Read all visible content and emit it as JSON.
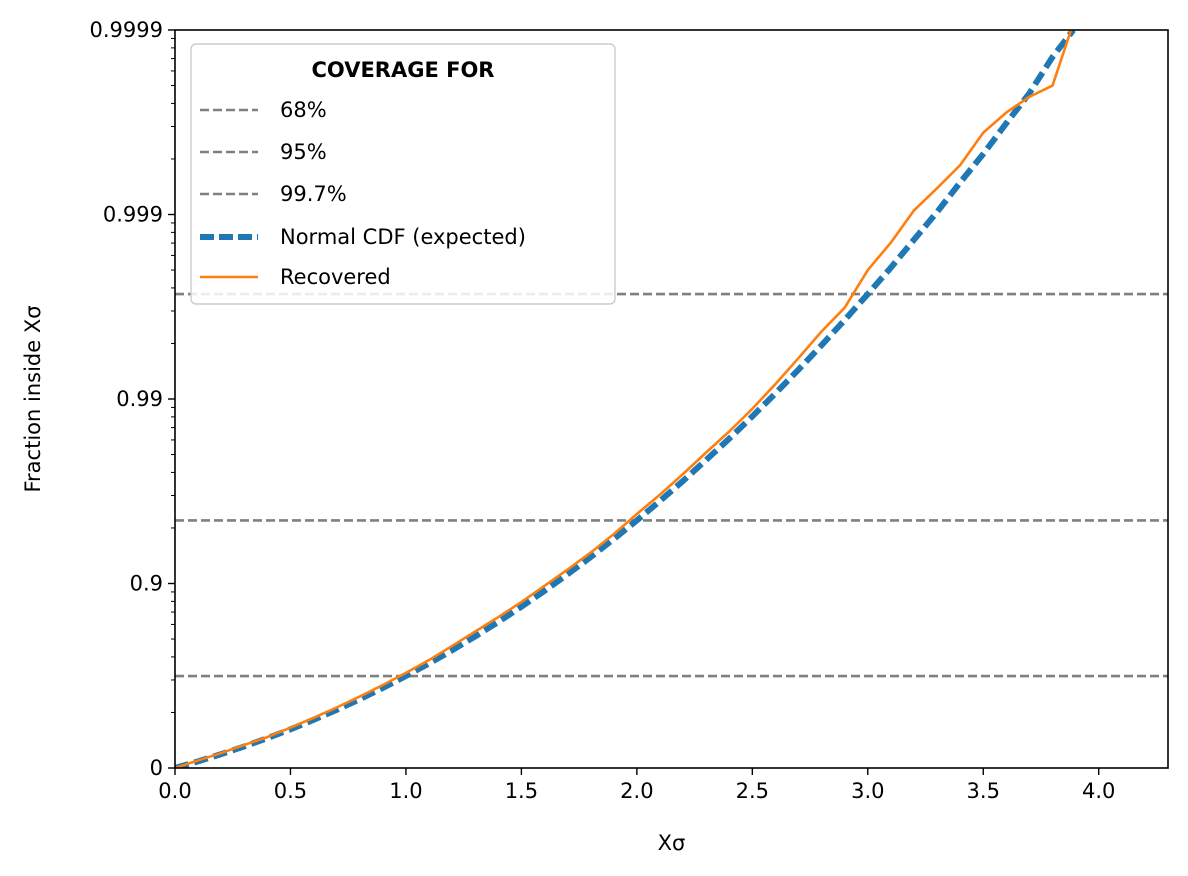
{
  "chart_data": {
    "type": "line",
    "xlabel": "Xσ",
    "ylabel": "Fraction inside Xσ",
    "x_scale": "linear",
    "y_scale": "log10 of 1/(1 − fraction)",
    "xlim": [
      0.0,
      4.3
    ],
    "ylim": [
      0,
      0.9999
    ],
    "x_ticks": [
      0.0,
      0.5,
      1.0,
      1.5,
      2.0,
      2.5,
      3.0,
      3.5,
      4.0
    ],
    "x_tick_labels": [
      "0.0",
      "0.5",
      "1.0",
      "1.5",
      "2.0",
      "2.5",
      "3.0",
      "3.5",
      "4.0"
    ],
    "y_ticks": [
      0,
      0.9,
      0.99,
      0.999,
      0.9999
    ],
    "y_tick_labels": [
      "0",
      "0.9",
      "0.99",
      "0.999",
      "0.9999"
    ],
    "grid": false,
    "legend": {
      "title": "COVERAGE FOR",
      "placement": "top-left",
      "entries": [
        {
          "label": "68%",
          "style": "dashed-gray-thin"
        },
        {
          "label": "95%",
          "style": "dashed-gray-thin"
        },
        {
          "label": "99.7%",
          "style": "dashed-gray-thin"
        },
        {
          "label": "Normal CDF (expected)",
          "style": "dashed-blue-thick"
        },
        {
          "label": "Recovered",
          "style": "solid-orange"
        }
      ]
    },
    "reference_lines": [
      {
        "name": "68%",
        "y": 0.6827
      },
      {
        "name": "95%",
        "y": 0.9545
      },
      {
        "name": "99.7%",
        "y": 0.9973
      }
    ],
    "series": [
      {
        "name": "Normal CDF (expected)",
        "color": "#1f77b4",
        "x": [
          0.0,
          0.1,
          0.2,
          0.3,
          0.4,
          0.5,
          0.6,
          0.7,
          0.8,
          0.9,
          1.0,
          1.1,
          1.2,
          1.3,
          1.4,
          1.5,
          1.6,
          1.7,
          1.8,
          1.9,
          2.0,
          2.1,
          2.2,
          2.3,
          2.4,
          2.5,
          2.6,
          2.7,
          2.8,
          2.9,
          3.0,
          3.1,
          3.2,
          3.3,
          3.4,
          3.5,
          3.6,
          3.7,
          3.8,
          3.89
        ],
        "y": [
          0.0,
          0.0797,
          0.1585,
          0.2358,
          0.3108,
          0.3829,
          0.4515,
          0.5161,
          0.5763,
          0.6319,
          0.6827,
          0.7287,
          0.7699,
          0.8064,
          0.8385,
          0.8664,
          0.8904,
          0.9109,
          0.9281,
          0.9426,
          0.9545,
          0.9643,
          0.9722,
          0.9786,
          0.9836,
          0.98758,
          0.99068,
          0.99307,
          0.99489,
          0.99627,
          0.9973,
          0.99806,
          0.99863,
          0.99903,
          0.99933,
          0.99953,
          0.99968,
          0.99978,
          0.99986,
          0.9999
        ]
      },
      {
        "name": "Recovered",
        "color": "#ff7f0e",
        "x": [
          0.0,
          0.1,
          0.2,
          0.3,
          0.4,
          0.5,
          0.6,
          0.7,
          0.8,
          0.9,
          1.0,
          1.1,
          1.2,
          1.3,
          1.4,
          1.5,
          1.6,
          1.7,
          1.8,
          1.9,
          2.0,
          2.1,
          2.2,
          2.3,
          2.4,
          2.5,
          2.6,
          2.7,
          2.8,
          2.9,
          3.0,
          3.1,
          3.2,
          3.3,
          3.4,
          3.5,
          3.6,
          3.7,
          3.8,
          3.88
        ],
        "y": [
          0.0,
          0.09,
          0.17,
          0.25,
          0.32,
          0.395,
          0.465,
          0.53,
          0.59,
          0.645,
          0.695,
          0.74,
          0.782,
          0.818,
          0.848,
          0.874,
          0.897,
          0.916,
          0.932,
          0.946,
          0.958,
          0.967,
          0.9745,
          0.9805,
          0.985,
          0.9887,
          0.9917,
          0.994,
          0.9957,
          0.9968,
          0.998,
          0.99858,
          0.99905,
          0.99928,
          0.99946,
          0.99964,
          0.99972,
          0.99977,
          0.9998,
          0.9999
        ]
      }
    ]
  }
}
